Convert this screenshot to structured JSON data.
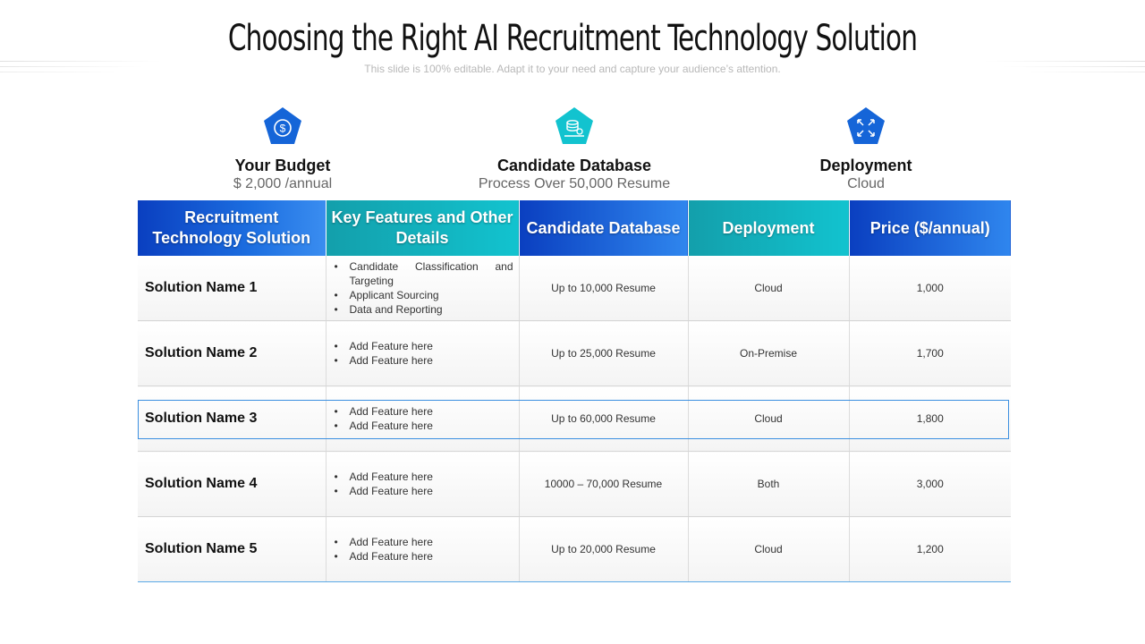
{
  "title": "Choosing the Right AI Recruitment Technology Solution",
  "subtitle": "This slide is 100% editable. Adapt it to your need and capture your audience’s attention.",
  "info": [
    {
      "heading": "Your Budget",
      "value": "$ 2,000 /annual",
      "icon": "dollar-icon",
      "color": "#1565d8"
    },
    {
      "heading": "Candidate Database",
      "value": "Process Over 50,000 Resume",
      "icon": "database-icon",
      "color": "#12c3cf"
    },
    {
      "heading": "Deployment",
      "value": "Cloud",
      "icon": "expand-arrows-icon",
      "color": "#1565d8"
    }
  ],
  "table": {
    "headers": [
      "Recruitment Technology Solution",
      "Key Features and Other Details",
      "Candidate Database",
      "Deployment",
      "Price ($/annual)"
    ],
    "rows": [
      {
        "name": "Solution Name 1",
        "features": [
          "Candidate Classification and Targeting",
          "Applicant Sourcing",
          "Data and Reporting"
        ],
        "database": "Up to 10,000 Resume",
        "deployment": "Cloud",
        "price": "1,000"
      },
      {
        "name": "Solution Name 2",
        "features": [
          "Add Feature here",
          "Add Feature here"
        ],
        "database": "Up to 25,000 Resume",
        "deployment": "On-Premise",
        "price": "1,700"
      },
      {
        "name": "Solution Name 3",
        "features": [
          "Add Feature here",
          "Add Feature here"
        ],
        "database": "Up to 60,000 Resume",
        "deployment": "Cloud",
        "price": "1,800"
      },
      {
        "name": "Solution Name 4",
        "features": [
          "Add Feature here",
          "Add Feature here"
        ],
        "database": "10000 – 70,000 Resume",
        "deployment": "Both",
        "price": "3,000"
      },
      {
        "name": "Solution Name 5",
        "features": [
          "Add Feature here",
          "Add Feature here"
        ],
        "database": "Up to 20,000 Resume",
        "deployment": "Cloud",
        "price": "1,200"
      }
    ]
  },
  "colors": {
    "header_blue": "#1565d8",
    "header_teal": "#12c3cf",
    "highlight_border": "#3b8fe0"
  }
}
